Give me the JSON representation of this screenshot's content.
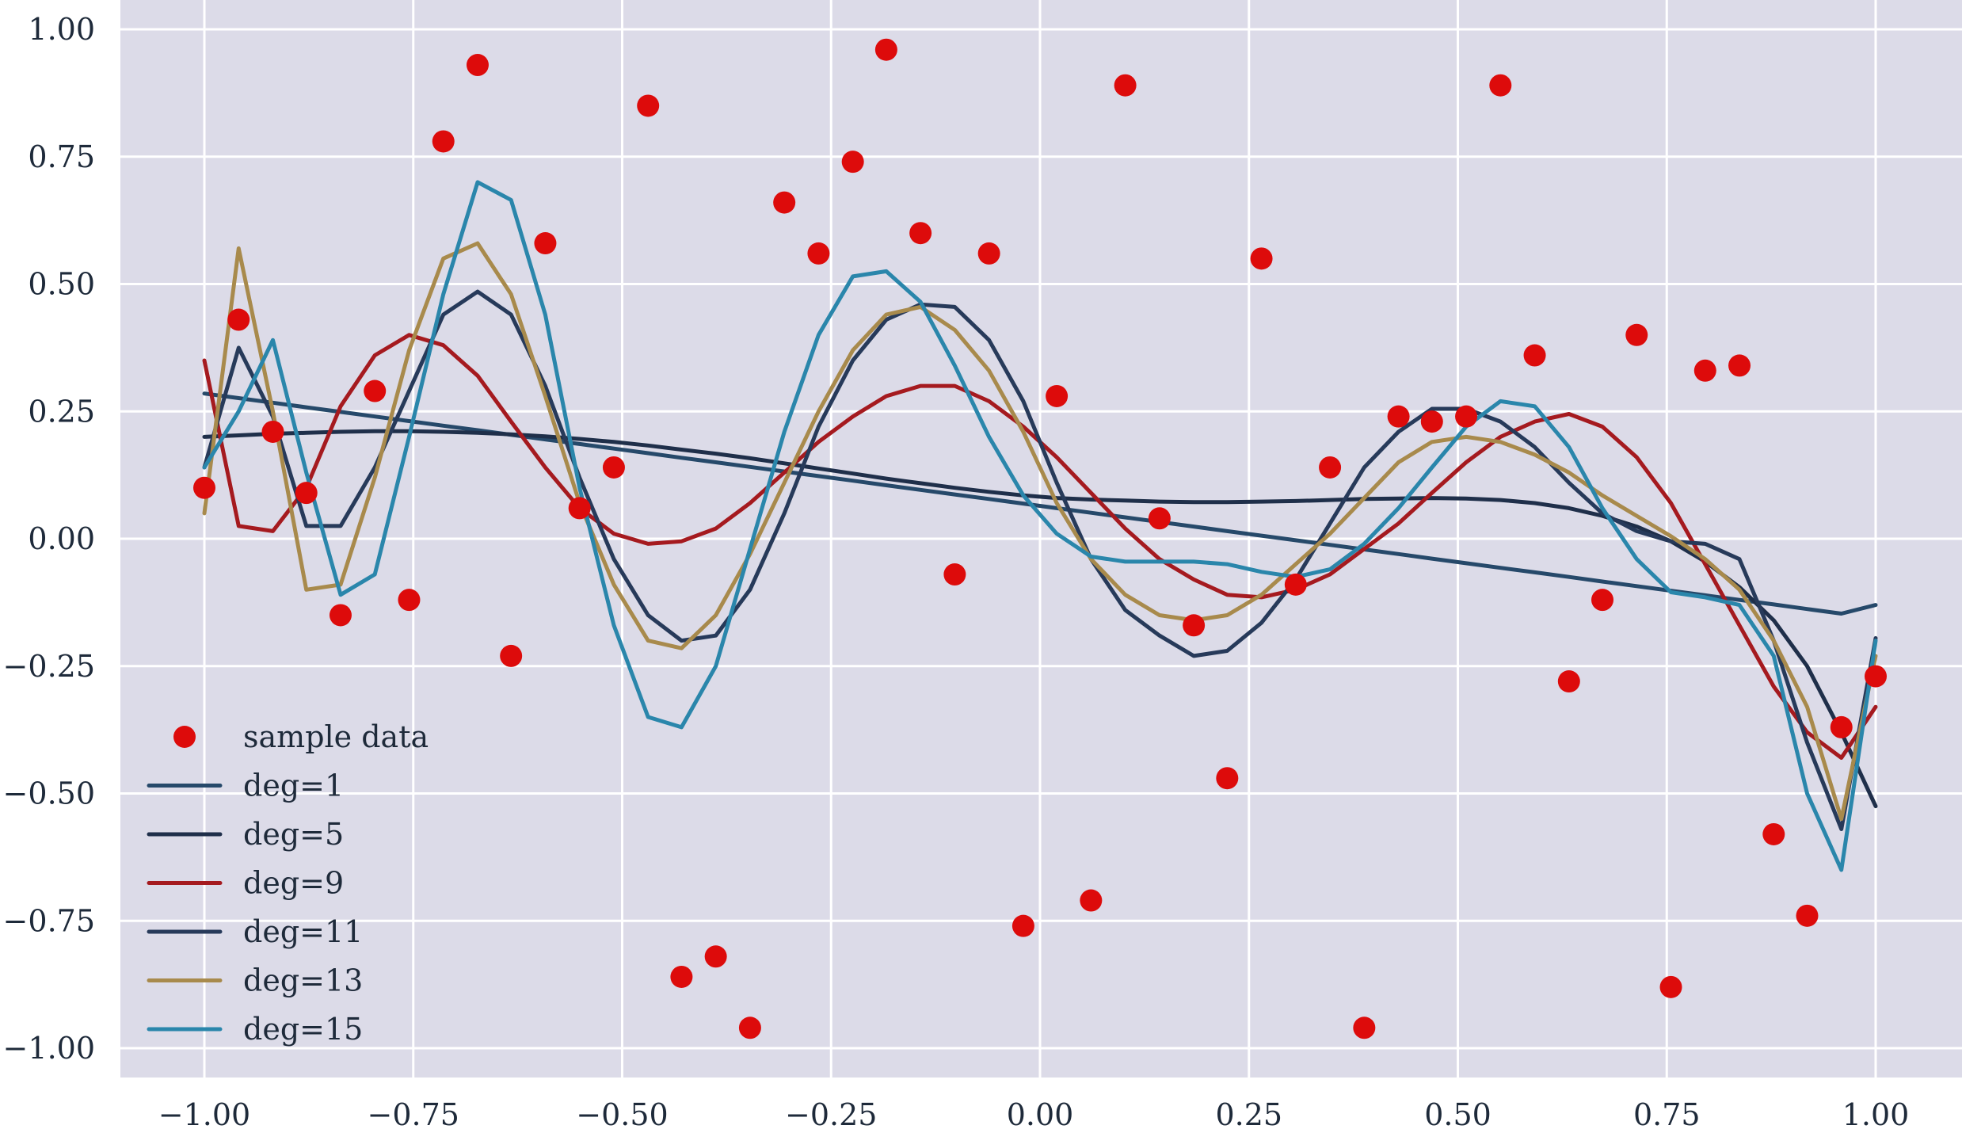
{
  "chart_data": {
    "type": "scatter",
    "title": "",
    "xlabel": "",
    "ylabel": "",
    "xlim": [
      -1.1,
      1.1
    ],
    "ylim": [
      -1.06,
      1.04
    ],
    "grid": true,
    "background": "#dcdbe8",
    "x_ticks": [
      -1.0,
      -0.75,
      -0.5,
      -0.25,
      0.0,
      0.25,
      0.5,
      0.75,
      1.0
    ],
    "x_tick_labels": [
      "−1.00",
      "−0.75",
      "−0.50",
      "−0.25",
      "0.00",
      "0.25",
      "0.50",
      "0.75",
      "1.00"
    ],
    "y_ticks": [
      1.0,
      0.75,
      0.5,
      0.25,
      0.0,
      -0.25,
      -0.5,
      -0.75,
      -1.0
    ],
    "y_tick_labels": [
      "1.00",
      "0.75",
      "0.50",
      "0.25",
      "0.00",
      "−0.25",
      "−0.50",
      "−0.75",
      "−1.00"
    ],
    "legend": {
      "position": "lower-left"
    },
    "scatter": {
      "name": "sample data",
      "color": "#dd0b0b",
      "x": [
        -1.0,
        -0.959,
        -0.918,
        -0.878,
        -0.837,
        -0.796,
        -0.755,
        -0.714,
        -0.673,
        -0.633,
        -0.592,
        -0.551,
        -0.51,
        -0.469,
        -0.429,
        -0.388,
        -0.347,
        -0.306,
        -0.265,
        -0.224,
        -0.184,
        -0.143,
        -0.102,
        -0.061,
        -0.02,
        0.02,
        0.061,
        0.102,
        0.143,
        0.184,
        0.224,
        0.265,
        0.306,
        0.347,
        0.388,
        0.429,
        0.469,
        0.51,
        0.551,
        0.592,
        0.633,
        0.673,
        0.714,
        0.755,
        0.796,
        0.837,
        0.878,
        0.918,
        0.959,
        1.0
      ],
      "y": [
        0.1,
        0.43,
        0.21,
        0.09,
        -0.15,
        0.29,
        -0.12,
        0.78,
        0.93,
        -0.23,
        0.58,
        0.06,
        0.14,
        0.85,
        -0.86,
        -0.82,
        -0.96,
        0.66,
        0.56,
        0.74,
        0.96,
        0.6,
        -0.07,
        0.56,
        -0.76,
        0.28,
        -0.71,
        0.89,
        0.04,
        -0.17,
        -0.47,
        0.55,
        -0.09,
        0.14,
        -0.96,
        0.24,
        0.23,
        0.24,
        0.89,
        0.36,
        -0.28,
        -0.12,
        0.4,
        -0.88,
        0.33,
        0.34,
        -0.58,
        -0.74,
        -0.37,
        -0.27
      ]
    },
    "x": [
      -1.0,
      -0.959,
      -0.918,
      -0.878,
      -0.837,
      -0.796,
      -0.755,
      -0.714,
      -0.673,
      -0.633,
      -0.592,
      -0.551,
      -0.51,
      -0.469,
      -0.429,
      -0.388,
      -0.347,
      -0.306,
      -0.265,
      -0.224,
      -0.184,
      -0.143,
      -0.102,
      -0.061,
      -0.02,
      0.02,
      0.061,
      0.102,
      0.143,
      0.184,
      0.224,
      0.265,
      0.306,
      0.347,
      0.388,
      0.429,
      0.469,
      0.51,
      0.551,
      0.592,
      0.633,
      0.673,
      0.714,
      0.755,
      0.796,
      0.837,
      0.878,
      0.918,
      0.959,
      1.0
    ],
    "series": [
      {
        "name": "deg=1",
        "color": "#26496a",
        "values": [
          0.285,
          0.276,
          0.267,
          0.258,
          0.249,
          0.24,
          0.231,
          0.222,
          0.213,
          0.204,
          0.195,
          0.186,
          0.177,
          0.168,
          0.159,
          0.15,
          0.141,
          0.132,
          0.123,
          0.114,
          0.105,
          0.096,
          0.087,
          0.078,
          0.069,
          0.06,
          0.051,
          0.042,
          0.033,
          0.024,
          0.015,
          0.006,
          -0.003,
          -0.012,
          -0.021,
          -0.03,
          -0.039,
          -0.048,
          -0.057,
          -0.066,
          -0.075,
          -0.084,
          -0.093,
          -0.102,
          -0.111,
          -0.12,
          -0.129,
          -0.138,
          -0.147,
          -0.13
        ]
      },
      {
        "name": "deg=5",
        "color": "#1f2f4a",
        "values": [
          0.2,
          0.203,
          0.206,
          0.208,
          0.21,
          0.211,
          0.211,
          0.21,
          0.208,
          0.205,
          0.201,
          0.196,
          0.19,
          0.183,
          0.175,
          0.167,
          0.158,
          0.148,
          0.138,
          0.128,
          0.118,
          0.109,
          0.1,
          0.092,
          0.085,
          0.08,
          0.077,
          0.075,
          0.073,
          0.072,
          0.072,
          0.073,
          0.074,
          0.076,
          0.078,
          0.079,
          0.08,
          0.079,
          0.076,
          0.07,
          0.06,
          0.045,
          0.024,
          -0.005,
          -0.045,
          -0.095,
          -0.16,
          -0.25,
          -0.38,
          -0.525
        ]
      },
      {
        "name": "deg=9",
        "color": "#a51a1f",
        "values": [
          0.35,
          0.025,
          0.015,
          0.1,
          0.26,
          0.36,
          0.4,
          0.38,
          0.32,
          0.23,
          0.14,
          0.06,
          0.01,
          -0.01,
          -0.005,
          0.02,
          0.07,
          0.13,
          0.19,
          0.24,
          0.28,
          0.3,
          0.3,
          0.27,
          0.22,
          0.16,
          0.09,
          0.02,
          -0.04,
          -0.08,
          -0.11,
          -0.115,
          -0.1,
          -0.07,
          -0.02,
          0.03,
          0.09,
          0.15,
          0.2,
          0.23,
          0.245,
          0.22,
          0.16,
          0.07,
          -0.05,
          -0.17,
          -0.29,
          -0.38,
          -0.43,
          -0.33
        ]
      },
      {
        "name": "deg=11",
        "color": "#273a5a",
        "values": [
          0.14,
          0.375,
          0.24,
          0.025,
          0.025,
          0.14,
          0.29,
          0.44,
          0.485,
          0.44,
          0.3,
          0.12,
          -0.04,
          -0.15,
          -0.2,
          -0.19,
          -0.1,
          0.05,
          0.22,
          0.35,
          0.43,
          0.46,
          0.455,
          0.39,
          0.27,
          0.11,
          -0.04,
          -0.14,
          -0.19,
          -0.23,
          -0.22,
          -0.165,
          -0.08,
          0.03,
          0.14,
          0.21,
          0.255,
          0.255,
          0.23,
          0.18,
          0.11,
          0.05,
          0.015,
          -0.005,
          -0.01,
          -0.04,
          -0.2,
          -0.4,
          -0.57,
          -0.195
        ]
      },
      {
        "name": "deg=13",
        "color": "#a88a4c",
        "values": [
          0.05,
          0.57,
          0.25,
          -0.1,
          -0.09,
          0.12,
          0.37,
          0.55,
          0.58,
          0.48,
          0.28,
          0.07,
          -0.09,
          -0.2,
          -0.215,
          -0.15,
          -0.03,
          0.11,
          0.25,
          0.37,
          0.44,
          0.455,
          0.41,
          0.33,
          0.21,
          0.07,
          -0.04,
          -0.11,
          -0.15,
          -0.16,
          -0.15,
          -0.11,
          -0.05,
          0.01,
          0.08,
          0.15,
          0.19,
          0.2,
          0.19,
          0.165,
          0.13,
          0.085,
          0.045,
          0.005,
          -0.04,
          -0.1,
          -0.2,
          -0.33,
          -0.55,
          -0.23
        ]
      },
      {
        "name": "deg=15",
        "color": "#2a86ab",
        "values": [
          0.14,
          0.25,
          0.39,
          0.13,
          -0.11,
          -0.07,
          0.2,
          0.48,
          0.7,
          0.665,
          0.44,
          0.1,
          -0.17,
          -0.35,
          -0.37,
          -0.25,
          -0.02,
          0.21,
          0.4,
          0.515,
          0.525,
          0.465,
          0.34,
          0.2,
          0.085,
          0.01,
          -0.035,
          -0.045,
          -0.045,
          -0.045,
          -0.05,
          -0.065,
          -0.075,
          -0.06,
          -0.01,
          0.06,
          0.14,
          0.22,
          0.27,
          0.26,
          0.18,
          0.06,
          -0.04,
          -0.105,
          -0.115,
          -0.13,
          -0.23,
          -0.5,
          -0.65,
          -0.2
        ]
      }
    ]
  }
}
